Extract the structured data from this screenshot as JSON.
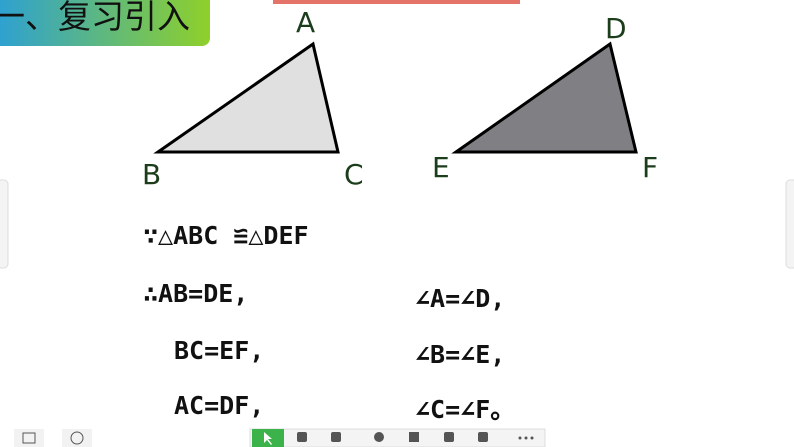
{
  "header": {
    "title": "一、复习引入"
  },
  "figure": {
    "labels": [
      "A",
      "B",
      "C",
      "D",
      "E",
      "F"
    ]
  },
  "statements": {
    "given": "∵△ABC ≌△DEF",
    "sides": [
      "∴AB=DE,",
      "BC=EF,",
      "AC=DF,"
    ],
    "angles": [
      "∠A=∠D,",
      "∠B=∠E,",
      "∠C=∠F。"
    ]
  }
}
